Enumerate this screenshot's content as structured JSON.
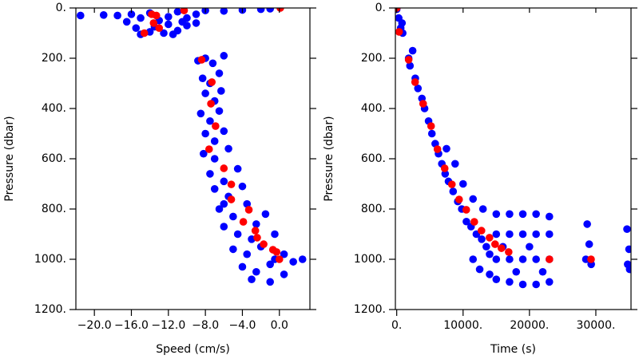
{
  "chart_data": [
    {
      "type": "scatter",
      "xlabel": "Speed (cm/s)",
      "ylabel": "Pressure (dbar)",
      "y_inverted": true,
      "xlim": [
        -22.0,
        3.3
      ],
      "ylim": [
        0,
        1200
      ],
      "xticks": [
        {
          "value": -20,
          "label": "−20.0"
        },
        {
          "value": -16,
          "label": "−16.0"
        },
        {
          "value": -12,
          "label": "−12.0"
        },
        {
          "value": -8,
          "label": "−8.0"
        },
        {
          "value": -4,
          "label": "−4.0"
        },
        {
          "value": 0,
          "label": "0.0"
        }
      ],
      "yticks": [
        {
          "value": 0,
          "label": "0."
        },
        {
          "value": 200,
          "label": "200."
        },
        {
          "value": 400,
          "label": "400."
        },
        {
          "value": 600,
          "label": "600."
        },
        {
          "value": 800,
          "label": "800."
        },
        {
          "value": 1000,
          "label": "1000."
        },
        {
          "value": 1200,
          "label": "1200."
        }
      ],
      "series": [
        {
          "color": "#0000ff",
          "x": [
            -21.5,
            -19,
            -17.5,
            -16,
            -15,
            -14,
            -13,
            -12,
            -11,
            -10,
            -9,
            -8,
            -6,
            -4,
            -2,
            -1,
            -15.5,
            -14,
            -12.5,
            -11,
            -10,
            -9,
            -16.5,
            -13.5,
            -12,
            -10.5,
            -15,
            -11.5,
            -8.8,
            -8,
            -7.2,
            -6,
            -8.3,
            -7.5,
            -6.5,
            -8,
            -7,
            -6.3,
            -8.5,
            -7.5,
            -6.5,
            -8,
            -7,
            -6,
            -8.2,
            -7,
            -5.5,
            -7.5,
            -6,
            -4.5,
            -7,
            -5.5,
            -4,
            -6.5,
            -5,
            -3.5,
            -6,
            -4.5,
            -2.5,
            -1.5,
            -5,
            -3.5,
            -2,
            -0.5,
            -4,
            -2.5,
            -1,
            0.5,
            1.5,
            -3,
            -1,
            0.5,
            2.5,
            -0.5,
            -6,
            -3
          ],
          "y": [
            30,
            28,
            30,
            25,
            40,
            20,
            50,
            35,
            15,
            40,
            25,
            10,
            12,
            8,
            5,
            3,
            80,
            95,
            100,
            90,
            70,
            60,
            55,
            75,
            65,
            55,
            105,
            105,
            210,
            200,
            220,
            190,
            280,
            300,
            260,
            340,
            370,
            330,
            420,
            450,
            410,
            500,
            530,
            490,
            580,
            600,
            560,
            660,
            690,
            640,
            720,
            750,
            710,
            800,
            830,
            780,
            870,
            900,
            860,
            820,
            960,
            980,
            950,
            900,
            1030,
            1050,
            1020,
            980,
            1010,
            1080,
            1090,
            1060,
            1000,
            1000,
            780,
            920
          ]
        },
        {
          "color": "#ff0000",
          "x": [
            0.1,
            -13.8,
            -13.3,
            -13.6,
            -14.6,
            -13.0,
            -10.3,
            -8.4,
            -7.3,
            -7.4,
            -6.9,
            -7.6,
            -6.0,
            -5.2,
            -5.2,
            -3.3,
            -3.9,
            -2.6,
            -2.4,
            -1.7,
            -0.7,
            -0.3,
            0
          ],
          "y": [
            0,
            25,
            30,
            60,
            100,
            80,
            10,
            206,
            295,
            381,
            470,
            562,
            638,
            702,
            762,
            803,
            851,
            886,
            914,
            940,
            962,
            971,
            1000
          ]
        }
      ]
    },
    {
      "type": "scatter",
      "xlabel": "Time (s)",
      "ylabel": "Pressure (dbar)",
      "y_inverted": true,
      "xlim": [
        -200,
        35300
      ],
      "ylim": [
        0,
        1200
      ],
      "xticks": [
        {
          "value": 0,
          "label": "0."
        },
        {
          "value": 10000,
          "label": "10000."
        },
        {
          "value": 20000,
          "label": "20000."
        },
        {
          "value": 30000,
          "label": "30000."
        }
      ],
      "yticks": [
        {
          "value": 0,
          "label": "0."
        },
        {
          "value": 200,
          "label": "200."
        },
        {
          "value": 400,
          "label": "400."
        },
        {
          "value": 600,
          "label": "600."
        },
        {
          "value": 800,
          "label": "800."
        },
        {
          "value": 1000,
          "label": "1000."
        },
        {
          "value": 1200,
          "label": "1200."
        }
      ],
      "series": [
        {
          "color": "#0000ff",
          "x": [
            0,
            300,
            600,
            900,
            800,
            1800,
            2000,
            2400,
            2800,
            3200,
            3800,
            4200,
            4800,
            5300,
            5800,
            6300,
            6800,
            7300,
            7800,
            8500,
            9200,
            9800,
            10500,
            11200,
            12000,
            12800,
            13500,
            14000,
            7500,
            8800,
            10000,
            11500,
            13000,
            15000,
            17000,
            19000,
            21000,
            23000,
            15000,
            17000,
            19000,
            21000,
            23000,
            15000,
            17000,
            19000,
            21000,
            23000,
            15000,
            17000,
            19000,
            21000,
            23000,
            16000,
            18000,
            20000,
            22000,
            14000,
            12500,
            11500,
            28700,
            29000,
            28500,
            29300,
            34700,
            35000,
            34800,
            35100
          ],
          "y": [
            5,
            40,
            80,
            100,
            60,
            200,
            230,
            170,
            280,
            320,
            360,
            400,
            450,
            500,
            540,
            580,
            620,
            660,
            690,
            730,
            770,
            800,
            850,
            870,
            900,
            920,
            950,
            980,
            560,
            620,
            700,
            760,
            800,
            820,
            820,
            820,
            820,
            830,
            900,
            900,
            900,
            900,
            900,
            1000,
            1000,
            1000,
            1000,
            1000,
            1080,
            1090,
            1100,
            1100,
            1090,
            950,
            1050,
            950,
            1050,
            1060,
            1040,
            1000,
            860,
            940,
            1000,
            1020,
            880,
            960,
            1020,
            1040
          ]
        },
        {
          "color": "#ff0000",
          "x": [
            0,
            360,
            1800,
            2770,
            3980,
            5180,
            6140,
            7230,
            8310,
            9400,
            10480,
            11690,
            12770,
            13980,
            14820,
            15780,
            16870,
            23010,
            29280
          ],
          "y": [
            0,
            95,
            206,
            295,
            381,
            470,
            562,
            638,
            702,
            762,
            803,
            851,
            886,
            914,
            940,
            956,
            971,
            1000,
            1000
          ]
        }
      ]
    }
  ]
}
